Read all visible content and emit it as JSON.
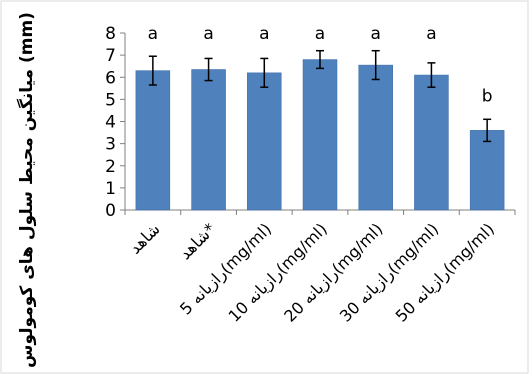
{
  "chart_data": {
    "type": "bar",
    "ylabel": "میانگین محیط سلول های کومولوس (mm)",
    "xlabel": "",
    "ylim": [
      0,
      8
    ],
    "yticks": [
      "0",
      "1",
      "2",
      "3",
      "4",
      "5",
      "6",
      "7",
      "8"
    ],
    "categories": [
      "شاهد",
      "شاهد*",
      "رازیانه 5(mg/ml)",
      "رازیانه 10(mg/ml)",
      "رازیانه 20(mg/ml)",
      "رازیانه 30(mg/ml)",
      "رازیانه 50(mg/ml)"
    ],
    "values": [
      6.3,
      6.35,
      6.2,
      6.8,
      6.55,
      6.1,
      3.6
    ],
    "errors": [
      0.65,
      0.5,
      0.65,
      0.4,
      0.65,
      0.55,
      0.5
    ],
    "significance_letters": [
      "a",
      "a",
      "a",
      "a",
      "a",
      "a",
      "b"
    ],
    "colors": {
      "bar_fill": "#4f81bd",
      "bar_stroke": "#3a6aa5",
      "axis": "#808080",
      "error_bar": "#000000"
    },
    "grid": false,
    "legend": "none"
  }
}
